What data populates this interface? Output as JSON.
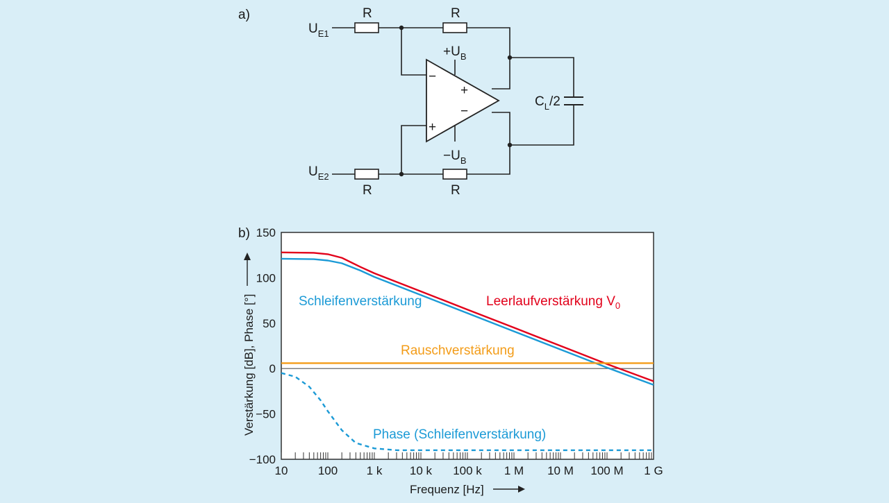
{
  "circuit": {
    "panel_label": "a)",
    "input1": {
      "main": "U",
      "sub": "E1"
    },
    "input2": {
      "main": "U",
      "sub": "E2"
    },
    "resistor_label": "R",
    "supply_pos": {
      "main": "+U",
      "sub": "B"
    },
    "supply_neg": {
      "main": "−U",
      "sub": "B"
    },
    "capacitor": {
      "main": "C",
      "sub": "L",
      "suffix": "/2"
    },
    "opamp_pins": {
      "inv_top": "−",
      "noninv_bottom": "+",
      "out_pos": "+",
      "out_neg": "−"
    }
  },
  "chart_data": {
    "type": "line",
    "panel_label": "b)",
    "x_scale": "log",
    "xlim": [
      10,
      1000000000
    ],
    "ylim": [
      -100,
      150
    ],
    "x_ticks": [
      {
        "value": 10,
        "label": "10"
      },
      {
        "value": 100,
        "label": "100"
      },
      {
        "value": 1000,
        "label": "1 k"
      },
      {
        "value": 10000,
        "label": "10 k"
      },
      {
        "value": 100000,
        "label": "100 k"
      },
      {
        "value": 1000000,
        "label": "1 M"
      },
      {
        "value": 10000000,
        "label": "10 M"
      },
      {
        "value": 100000000,
        "label": "100 M"
      },
      {
        "value": 1000000000,
        "label": "1 G"
      }
    ],
    "y_ticks": [
      {
        "value": 150,
        "label": "150"
      },
      {
        "value": 100,
        "label": "100"
      },
      {
        "value": 50,
        "label": "50"
      },
      {
        "value": 0,
        "label": "0"
      },
      {
        "value": -50,
        "label": "−50"
      },
      {
        "value": -100,
        "label": "−100"
      }
    ],
    "xlabel": "Frequenz [Hz]",
    "ylabel": "Verstärkung [dB], Phase [°]",
    "zero_line": true,
    "series": [
      {
        "name": "Leerlaufverstärkung V",
        "name_sub": "0",
        "color": "#e2001a",
        "style": "solid",
        "x": [
          10,
          50,
          100,
          200,
          500,
          1000,
          10000,
          100000,
          1000000,
          10000000,
          100000000,
          1000000000
        ],
        "y": [
          128,
          127.5,
          126,
          122,
          112,
          105,
          85,
          65,
          45,
          25,
          5,
          -14
        ]
      },
      {
        "name": "Schleifenverstärkung",
        "color": "#1b9ad6",
        "style": "solid",
        "x": [
          10,
          50,
          100,
          200,
          500,
          1000,
          10000,
          100000,
          1000000,
          10000000,
          100000000,
          1000000000
        ],
        "y": [
          121,
          120.5,
          119,
          116,
          108,
          101,
          81,
          61,
          41,
          21,
          1,
          -18
        ]
      },
      {
        "name": "Rauschverstärkung",
        "color": "#f39c18",
        "style": "solid",
        "x": [
          10,
          1000000000
        ],
        "y": [
          6,
          6
        ]
      },
      {
        "name": "Phase (Schleifenverstärkung)",
        "color": "#1b9ad6",
        "style": "dashed",
        "x": [
          10,
          20,
          40,
          70,
          100,
          200,
          400,
          1000,
          3000,
          10000,
          100000,
          1000000000
        ],
        "y": [
          -5,
          -9,
          -20,
          -35,
          -47,
          -68,
          -82,
          -88,
          -90,
          -90,
          -90,
          -90
        ]
      }
    ]
  }
}
